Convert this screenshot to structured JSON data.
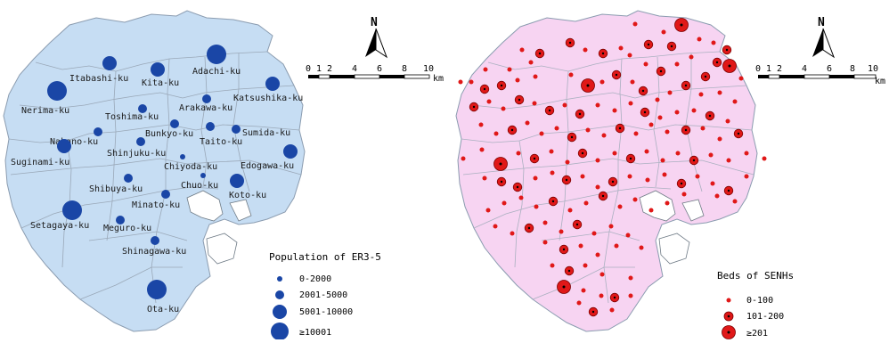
{
  "colors": {
    "left_fill": "#c6ddf3",
    "right_fill": "#f7d4f2",
    "boundary": "#9aa8b8",
    "blue_symbol": "#1a46a6",
    "red_symbol": "#e01818",
    "red_symbol_stroke": "#7a0000"
  },
  "left_map": {
    "ward_labels": [
      "Itabashi-ku",
      "Kita-ku",
      "Adachi-ku",
      "Nerima-ku",
      "Katsushika-ku",
      "Toshima-ku",
      "Arakawa-ku",
      "Nakano-ku",
      "Bunkyo-ku",
      "Sumida-ku",
      "Suginami-ku",
      "Shinjuku-ku",
      "Taito-ku",
      "Chiyoda-ku",
      "Edogawa-ku",
      "Chuo-ku",
      "Shibuya-ku",
      "Koto-ku",
      "Minato-ku",
      "Setagaya-ku",
      "Meguro-ku",
      "Shinagawa-ku",
      "Ota-ku"
    ],
    "legend": {
      "title": "Population of ER3-5",
      "classes": [
        "0-2000",
        "2001-5000",
        "5001-10000",
        "≥10001"
      ]
    }
  },
  "right_map": {
    "legend": {
      "title": "Beds of SENHs",
      "classes": [
        "0-100",
        "101-200",
        "≥201"
      ]
    }
  },
  "north_arrow": {
    "label": "N"
  },
  "scale_bar": {
    "ticks": [
      "0",
      "1",
      "2",
      "4",
      "6",
      "8",
      "10"
    ],
    "unit": "km"
  }
}
